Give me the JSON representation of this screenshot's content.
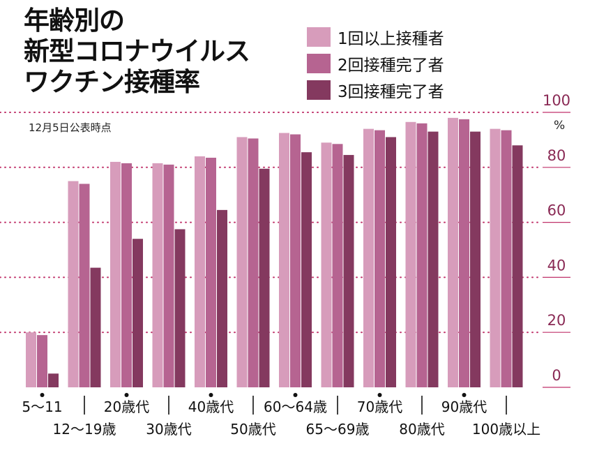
{
  "title_lines": [
    "年齢別の",
    "新型コロナウイルス",
    "ワクチン接種率"
  ],
  "note": "12月5日公表時点",
  "unit": "%",
  "colors": {
    "grid": "#c0326a",
    "axis_text": "#8a2a55",
    "label_text": "#111111"
  },
  "chart_data": {
    "type": "bar",
    "title": "年齢別の新型コロナウイルスワクチン接種率",
    "ylim": [
      0,
      100
    ],
    "yticks": [
      0,
      20,
      40,
      60,
      80,
      100
    ],
    "grid": true,
    "legend": "top-right",
    "categories": [
      "5～11",
      "12～19歳",
      "20歳代",
      "30歳代",
      "40歳代",
      "50歳代",
      "60～64歳",
      "65～69歳",
      "70歳代",
      "80歳代",
      "90歳代",
      "100歳以上"
    ],
    "series": [
      {
        "name": "1回以上接種者",
        "color": "#d79cbb",
        "values": [
          20,
          75,
          82,
          81.5,
          84,
          91,
          92.5,
          89,
          94,
          96.5,
          98,
          94
        ]
      },
      {
        "name": "2回接種完了者",
        "color": "#b66491",
        "values": [
          19,
          74,
          81.5,
          81,
          83.5,
          90.5,
          92,
          88.5,
          93.5,
          96,
          97.5,
          93.5
        ]
      },
      {
        "name": "3回接種完了者",
        "color": "#84395f",
        "values": [
          5,
          43.5,
          54,
          57.5,
          64.5,
          79.5,
          85.5,
          84.5,
          91,
          93,
          93,
          88
        ]
      }
    ]
  }
}
